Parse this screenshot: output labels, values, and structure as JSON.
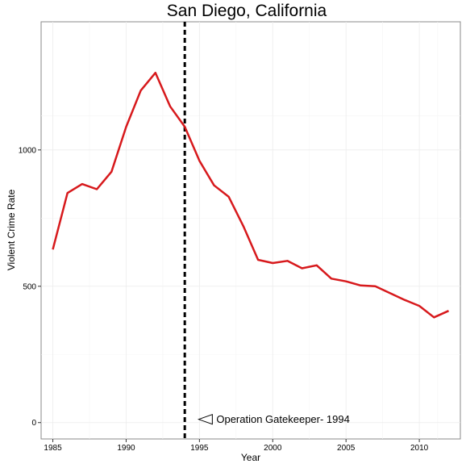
{
  "chart_data": {
    "type": "line",
    "title": "San Diego, California",
    "xlabel": "Year",
    "ylabel": "Violent Crime Rate",
    "xlim": [
      1984.2,
      2012.8
    ],
    "ylim": [
      -60,
      1470
    ],
    "x_ticks": [
      1985,
      1990,
      1995,
      2000,
      2005,
      2010
    ],
    "y_ticks": [
      0,
      500,
      1000
    ],
    "grid": true,
    "series": [
      {
        "color": "#d7191c",
        "x": [
          1985,
          1986,
          1987,
          1988,
          1989,
          1990,
          1991,
          1992,
          1993,
          1994,
          1995,
          1996,
          1997,
          1998,
          1999,
          2000,
          2001,
          2002,
          2003,
          2004,
          2005,
          2006,
          2007,
          2008,
          2009,
          2010,
          2011,
          2012
        ],
        "y": [
          635,
          842,
          875,
          856,
          920,
          1085,
          1218,
          1283,
          1160,
          1085,
          960,
          870,
          828,
          720,
          597,
          585,
          593,
          566,
          577,
          528,
          518,
          503,
          500,
          475,
          450,
          428,
          386,
          410
        ]
      }
    ],
    "vline": {
      "x": 1994,
      "style": "dashed",
      "color": "#000000"
    },
    "annotation": {
      "text": "Operation Gatekeeper- 1994",
      "x": 1995,
      "y": 12
    }
  }
}
